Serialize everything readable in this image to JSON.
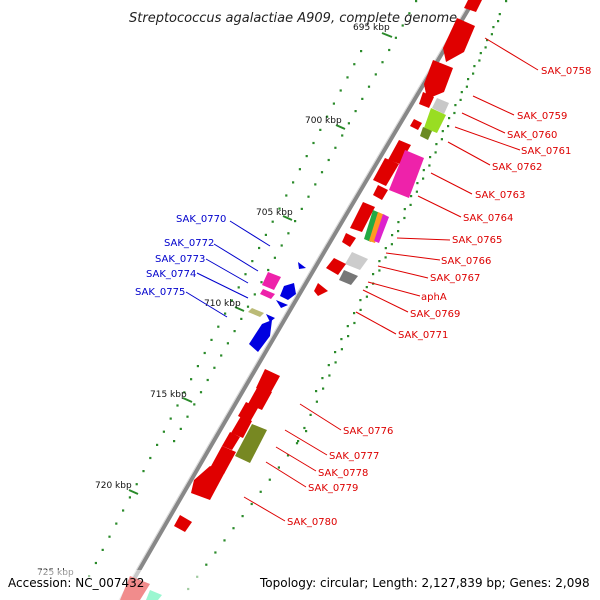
{
  "title": "Streptococcus agalactiae A909, complete genome",
  "footer": {
    "accession": "Accession: NC_007432",
    "summary": "Topology: circular; Length: 2,127,839 bp; Genes: 2,098"
  },
  "colors": {
    "forward": "#e00000",
    "reverse": "#0000e0",
    "forward_label": "#dd0000",
    "reverse_label": "#0000cc",
    "backbone": "#888888",
    "tick": "#2a8a2a"
  },
  "scale_labels": [
    {
      "id": "k695",
      "text": "695 kbp"
    },
    {
      "id": "k700",
      "text": "700 kbp"
    },
    {
      "id": "k705",
      "text": "705 kbp"
    },
    {
      "id": "k710",
      "text": "710 kbp"
    },
    {
      "id": "k715",
      "text": "715 kbp"
    },
    {
      "id": "k720",
      "text": "720 kbp"
    },
    {
      "id": "k725",
      "text": "725 kbp"
    }
  ],
  "forward_genes": [
    {
      "id": "g0758",
      "label": "SAK_0758"
    },
    {
      "id": "g0759",
      "label": "SAK_0759"
    },
    {
      "id": "g0760",
      "label": "SAK_0760"
    },
    {
      "id": "g0761",
      "label": "SAK_0761"
    },
    {
      "id": "g0762",
      "label": "SAK_0762"
    },
    {
      "id": "g0763",
      "label": "SAK_0763"
    },
    {
      "id": "g0764",
      "label": "SAK_0764"
    },
    {
      "id": "g0765",
      "label": "SAK_0765"
    },
    {
      "id": "g0766",
      "label": "SAK_0766"
    },
    {
      "id": "g0767",
      "label": "SAK_0767"
    },
    {
      "id": "gaphA",
      "label": "aphA"
    },
    {
      "id": "g0769",
      "label": "SAK_0769"
    },
    {
      "id": "g0771",
      "label": "SAK_0771"
    },
    {
      "id": "g0776",
      "label": "SAK_0776"
    },
    {
      "id": "g0777",
      "label": "SAK_0777"
    },
    {
      "id": "g0778",
      "label": "SAK_0778"
    },
    {
      "id": "g0779",
      "label": "SAK_0779"
    },
    {
      "id": "g0780",
      "label": "SAK_0780"
    }
  ],
  "reverse_genes": [
    {
      "id": "g0770",
      "label": "SAK_0770"
    },
    {
      "id": "g0772",
      "label": "SAK_0772"
    },
    {
      "id": "g0773",
      "label": "SAK_0773"
    },
    {
      "id": "g0774",
      "label": "SAK_0774"
    },
    {
      "id": "g0775",
      "label": "SAK_0775"
    }
  ]
}
